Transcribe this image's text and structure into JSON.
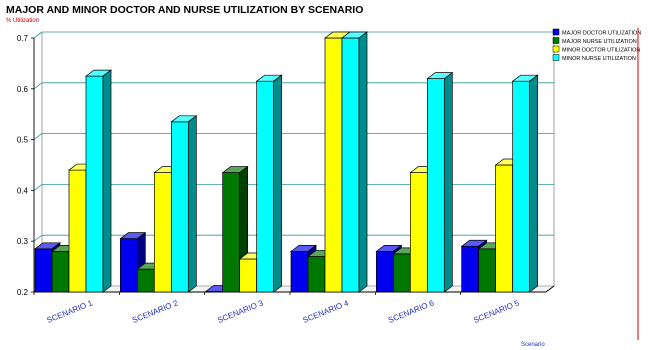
{
  "chart_data": {
    "type": "bar",
    "title": "MAJOR AND MINOR DOCTOR AND NURSE UTILIZATION BY SCENARIO",
    "ylabel": "% Utilization",
    "xlabel": "Scenario",
    "categories": [
      "SCENARIO 1",
      "SCENARIO 2",
      "SCENARIO 3",
      "SCENARIO 4",
      "SCENARIO 6",
      "SCENARIO 5"
    ],
    "ylim": [
      0.2,
      0.7
    ],
    "yticks": [
      0.2,
      0.3,
      0.4,
      0.5,
      0.6,
      0.7
    ],
    "grid": true,
    "legend_position": "top-right",
    "series": [
      {
        "name": "MAJOR DOCTOR UTILIZATION",
        "color": "#0000ee",
        "values": [
          0.285,
          0.305,
          0.2,
          0.28,
          0.28,
          0.29
        ]
      },
      {
        "name": "MAJOR NURSE UTILIZATION",
        "color": "#007700",
        "values": [
          0.28,
          0.245,
          0.435,
          0.27,
          0.275,
          0.285
        ]
      },
      {
        "name": "MINOR DOCTOR UTILIZATION",
        "color": "#ffff00",
        "values": [
          0.44,
          0.435,
          0.265,
          0.7,
          0.435,
          0.45
        ]
      },
      {
        "name": "MINOR NURSE UTILIZATION",
        "color": "#00ffff",
        "values": [
          0.625,
          0.535,
          0.615,
          0.7,
          0.62,
          0.615
        ]
      }
    ]
  }
}
